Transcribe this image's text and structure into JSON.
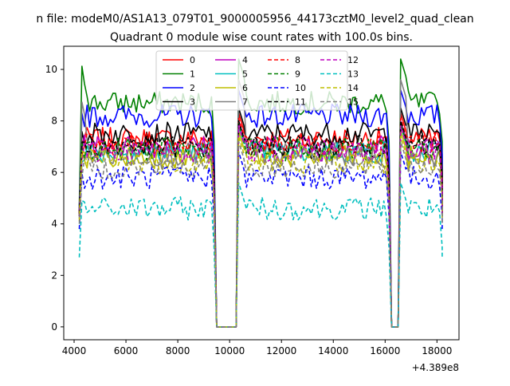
{
  "figure": {
    "suptitle": "n file: modeM0/AS1A13_079T01_9000005956_44173cztM0_level2_quad_clean",
    "offset_label": "+4.389e8"
  },
  "chart_data": {
    "type": "line",
    "title": "Quadrant 0 module wise count rates with 100.0s bins.",
    "xlabel": "",
    "ylabel": "",
    "xlim": [
      3600,
      18850
    ],
    "ylim": [
      -0.5,
      10.9
    ],
    "x_offset": 438900000,
    "xticks": [
      4000,
      6000,
      8000,
      10000,
      12000,
      14000,
      16000,
      18000
    ],
    "yticks": [
      0,
      2,
      4,
      6,
      8,
      10
    ],
    "grid": false,
    "legend": {
      "position": "top-center",
      "columns": 4
    },
    "segments": [
      [
        4200,
        9450
      ],
      [
        10350,
        16200
      ],
      [
        16600,
        18200
      ]
    ],
    "gaps": [
      [
        9550,
        10250
      ],
      [
        16250,
        16500
      ]
    ],
    "series": [
      {
        "name": "0",
        "color": "#ff0000",
        "dash": "solid",
        "level": 7.3,
        "start": 4.5
      },
      {
        "name": "1",
        "color": "#008000",
        "dash": "solid",
        "level": 8.7,
        "start": 4.7,
        "peak": 10.4
      },
      {
        "name": "2",
        "color": "#0000ff",
        "dash": "solid",
        "level": 8.2,
        "start": 4.6
      },
      {
        "name": "3",
        "color": "#000000",
        "dash": "solid",
        "level": 7.5,
        "start": 4.5
      },
      {
        "name": "4",
        "color": "#bf00bf",
        "dash": "solid",
        "level": 7.0,
        "start": 4.4
      },
      {
        "name": "5",
        "color": "#00bfbf",
        "dash": "solid",
        "level": 6.8,
        "start": 4.3
      },
      {
        "name": "6",
        "color": "#bfbf00",
        "dash": "solid",
        "level": 6.6,
        "start": 4.3
      },
      {
        "name": "7",
        "color": "#808080",
        "dash": "solid",
        "level": 6.7,
        "start": 4.2,
        "peak": 9.6
      },
      {
        "name": "8",
        "color": "#ff0000",
        "dash": "dashed",
        "level": 7.1,
        "start": 4.4
      },
      {
        "name": "9",
        "color": "#008000",
        "dash": "dashed",
        "level": 6.9,
        "start": 4.3
      },
      {
        "name": "10",
        "color": "#0000ff",
        "dash": "dashed",
        "level": 5.8,
        "start": 3.8
      },
      {
        "name": "11",
        "color": "#000000",
        "dash": "dashed",
        "level": 7.0,
        "start": 4.4
      },
      {
        "name": "12",
        "color": "#bf00bf",
        "dash": "dashed",
        "level": 6.8,
        "start": 4.3
      },
      {
        "name": "13",
        "color": "#00bfbf",
        "dash": "dashed",
        "level": 4.6,
        "start": 2.7
      },
      {
        "name": "14",
        "color": "#bfbf00",
        "dash": "dashed",
        "level": 6.4,
        "start": 4.1
      },
      {
        "name": "15",
        "color": "#808080",
        "dash": "dashed",
        "level": 6.2,
        "start": 4.0
      }
    ]
  }
}
